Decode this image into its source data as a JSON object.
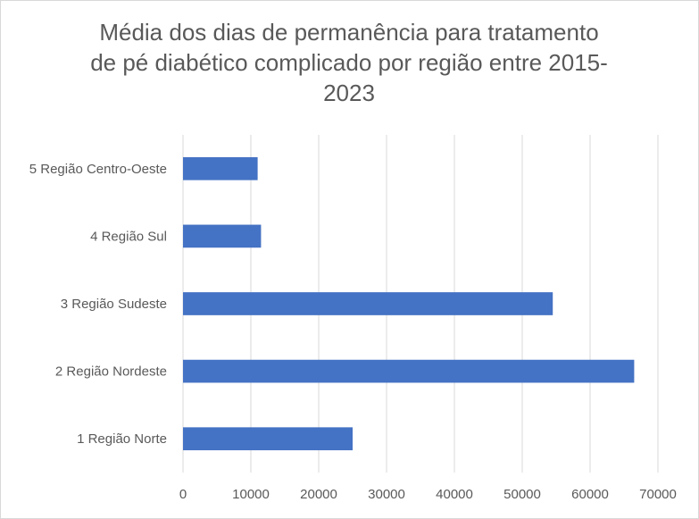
{
  "chart_data": {
    "type": "bar",
    "orientation": "horizontal",
    "title": "Média dos dias de permanência para tratamento de pé diabético complicado por região entre 2015-2023",
    "title_lines": [
      "Média dos dias de permanência para tratamento",
      "de pé diabético complicado por região entre 2015-",
      "2023"
    ],
    "categories": [
      "5 Região Centro-Oeste",
      "4 Região Sul",
      "3 Região Sudeste",
      "2 Região Nordeste",
      "1 Região Norte"
    ],
    "values": [
      11000,
      11500,
      54500,
      66500,
      25000
    ],
    "xlim": [
      0,
      70000
    ],
    "x_ticks": [
      "0",
      "10000",
      "20000",
      "30000",
      "40000",
      "50000",
      "60000",
      "70000"
    ],
    "xlabel": "",
    "ylabel": "",
    "grid": "vertical",
    "legend": "none",
    "bar_color": "#4472c4",
    "grid_color": "#d9d9d9"
  }
}
